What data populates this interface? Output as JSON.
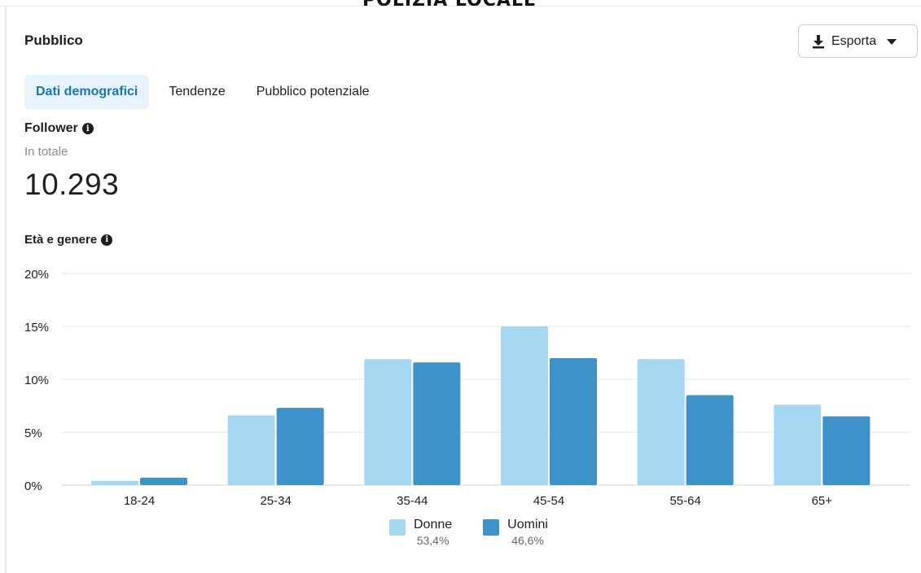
{
  "banner": "POLIZIA LOCALE",
  "header": {
    "title": "Pubblico"
  },
  "export": {
    "label": "Esporta",
    "icon": "download-icon",
    "caret_icon": "caret-down-icon"
  },
  "tabs": [
    {
      "label": "Dati demografici",
      "active": true
    },
    {
      "label": "Tendenze",
      "active": false
    },
    {
      "label": "Pubblico potenziale",
      "active": false
    }
  ],
  "follower": {
    "title": "Follower",
    "subtitle": "In totale",
    "value": "10.293"
  },
  "age_section": {
    "title": "Età e genere"
  },
  "colors": {
    "donne": "#a7d8f3",
    "uomini": "#3d92c9",
    "grid": "#e4e6eb",
    "accent": "#1877a8"
  },
  "chart_data": {
    "type": "bar",
    "categories": [
      "18-24",
      "25-34",
      "35-44",
      "45-54",
      "55-64",
      "65+"
    ],
    "series": [
      {
        "name": "Donne",
        "values": [
          0.4,
          6.6,
          11.9,
          15.0,
          11.9,
          7.6
        ],
        "share": "53,4%"
      },
      {
        "name": "Uomini",
        "values": [
          0.7,
          7.3,
          11.6,
          12.0,
          8.5,
          6.5
        ],
        "share": "46,6%"
      }
    ],
    "yticks": [
      "0%",
      "5%",
      "10%",
      "15%",
      "20%"
    ],
    "ytick_values": [
      0,
      5,
      10,
      15,
      20
    ],
    "ylim": [
      0,
      20
    ],
    "grid": true,
    "legend_position": "bottom"
  }
}
